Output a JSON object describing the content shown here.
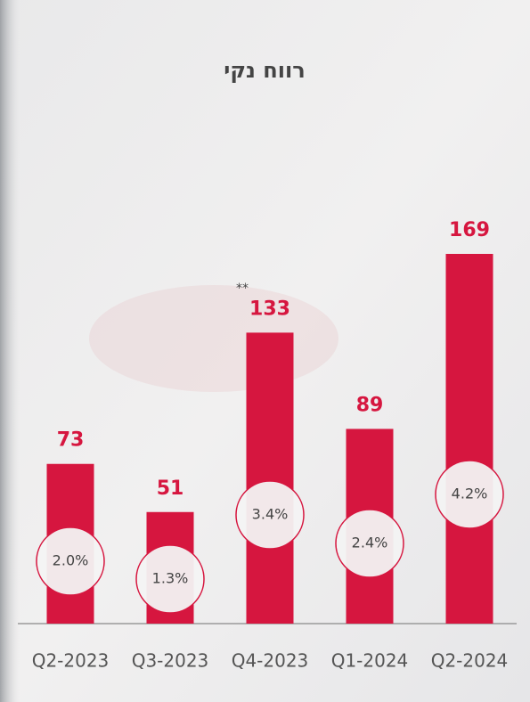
{
  "chart_data": {
    "type": "bar",
    "title": "רווח נקי",
    "categories": [
      "Q2-2023",
      "Q3-2023",
      "Q4-2023",
      "Q1-2024",
      "Q2-2024"
    ],
    "values": [
      73,
      51,
      133,
      89,
      169
    ],
    "color": "#d6163f",
    "margin_labels": [
      "2.0%",
      "1.3%",
      "3.4%",
      "2.4%",
      "4.2%"
    ],
    "annotation": "**"
  }
}
